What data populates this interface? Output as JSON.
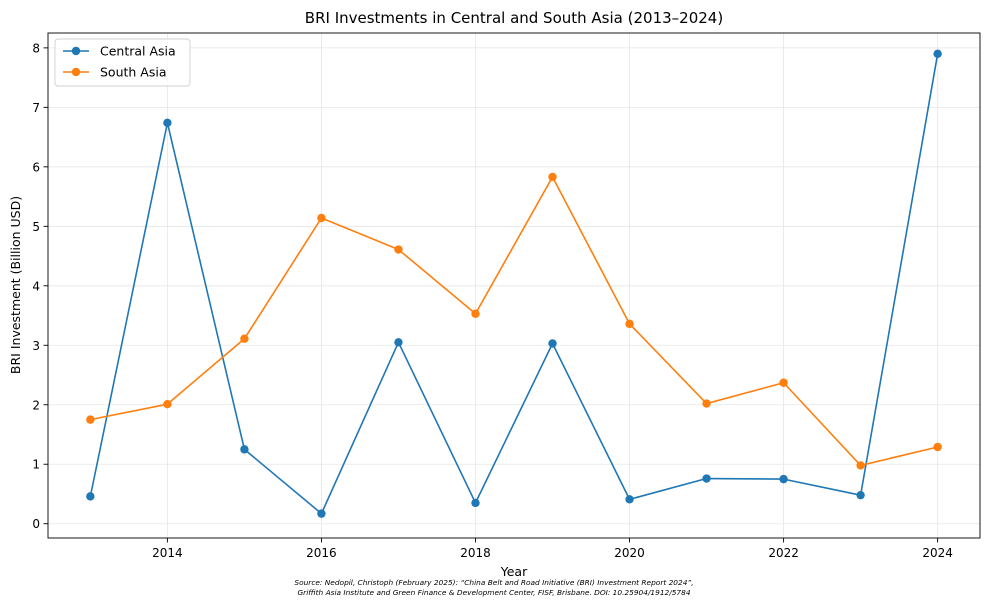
{
  "chart_data": {
    "type": "line",
    "title": "BRI Investments in Central and South Asia (2013–2024)",
    "xlabel": "Year",
    "ylabel": "BRI Investment (Billion USD)",
    "x": [
      2013,
      2014,
      2015,
      2016,
      2017,
      2018,
      2019,
      2020,
      2021,
      2022,
      2023,
      2024
    ],
    "xlim": [
      2012.45,
      2024.55
    ],
    "ylim": [
      -0.24,
      8.25
    ],
    "xticks": [
      "2014",
      "2016",
      "2018",
      "2020",
      "2022",
      "2024"
    ],
    "yticks": [
      "0",
      "1",
      "2",
      "3",
      "4",
      "5",
      "6",
      "7",
      "8"
    ],
    "grid": true,
    "legend": "top-left",
    "series": [
      {
        "name": "Central Asia",
        "color": "#1f77b4",
        "values": [
          0.46,
          6.74,
          1.25,
          0.17,
          3.05,
          0.35,
          3.03,
          0.41,
          0.76,
          0.75,
          0.48,
          7.9
        ]
      },
      {
        "name": "South Asia",
        "color": "#ff7f0e",
        "values": [
          1.75,
          2.01,
          3.11,
          5.14,
          4.61,
          3.53,
          5.83,
          3.36,
          2.02,
          2.37,
          0.98,
          1.29
        ]
      }
    ],
    "source": [
      "Source: Nedopil, Christoph (February 2025): “China Belt and Road Initiative (BRI) Investment Report 2024”,",
      "Griffith Asia Institute and Green Finance & Development Center, FISF, Brisbane. DOI: 10.25904/1912/5784"
    ]
  }
}
